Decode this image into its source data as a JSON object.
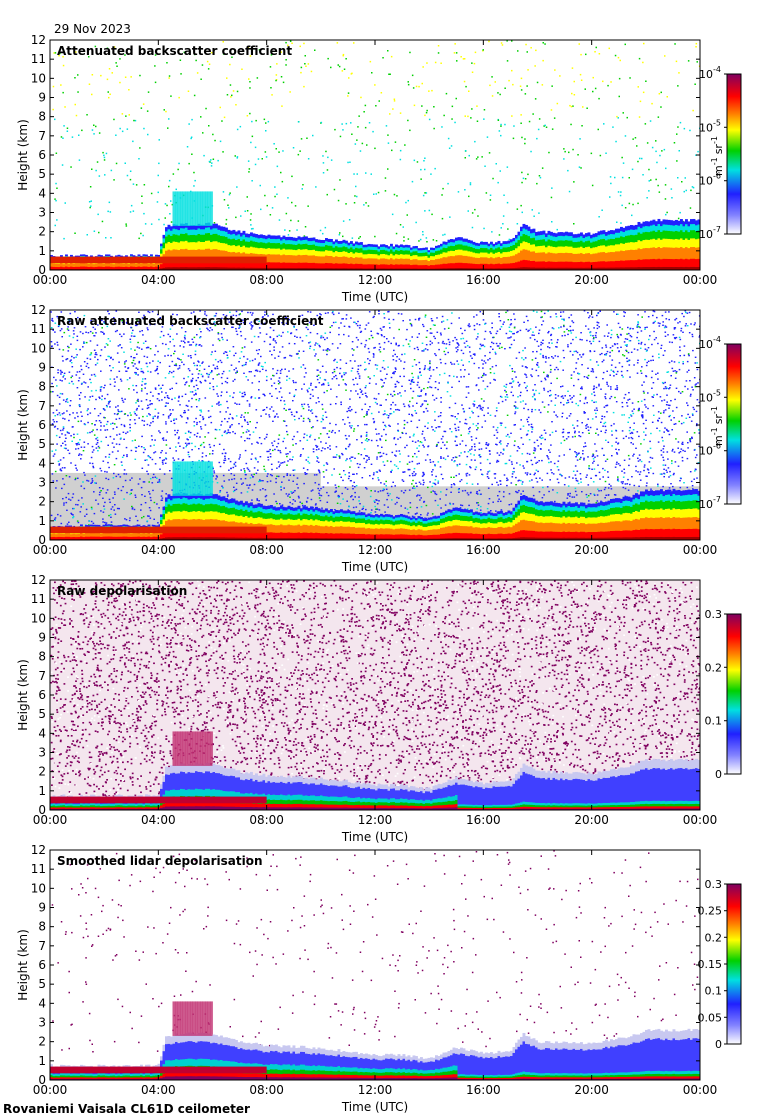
{
  "date": "29 Nov 2023",
  "footer": "Rovaniemi Vaisala CL61D ceilometer",
  "colors": {
    "scale": [
      "#e0e0f0",
      "#2020ff",
      "#00e0e0",
      "#00d000",
      "#ffff00",
      "#ff8000",
      "#ff0000",
      "#800060"
    ],
    "noise_gray": "#d0d0d0",
    "depol_noise": "#800060"
  },
  "chart_data": [
    {
      "type": "heatmap",
      "title": "Attenuated backscatter coefficient",
      "xlabel": "Time (UTC)",
      "ylabel": "Height (km)",
      "xlim": [
        "00:00",
        "00:00"
      ],
      "ylim": [
        0,
        12
      ],
      "xticks": [
        "00:00",
        "04:00",
        "08:00",
        "12:00",
        "16:00",
        "20:00",
        "00:00"
      ],
      "yticks": [
        "0",
        "1",
        "2",
        "3",
        "4",
        "5",
        "6",
        "7",
        "8",
        "9",
        "10",
        "11",
        "12"
      ],
      "colorbar": {
        "scale": "log",
        "range": [
          1e-07,
          0.0001
        ],
        "ticks": [
          {
            "base": "10",
            "exp": "-4",
            "pos": 1.0
          },
          {
            "base": "10",
            "exp": "-5",
            "pos": 0.667
          },
          {
            "base": "10",
            "exp": "-6",
            "pos": 0.333
          },
          {
            "base": "10",
            "exp": "-7",
            "pos": 0.0
          }
        ],
        "unit": {
          "a": "m",
          "a_exp": "-1",
          "b": "sr",
          "b_exp": "-1"
        }
      },
      "noise": "sparse"
    },
    {
      "type": "heatmap",
      "title": "Raw attenuated backscatter coefficient",
      "xlabel": "Time (UTC)",
      "ylabel": "Height (km)",
      "xlim": [
        "00:00",
        "00:00"
      ],
      "ylim": [
        0,
        12
      ],
      "xticks": [
        "00:00",
        "04:00",
        "08:00",
        "12:00",
        "16:00",
        "20:00",
        "00:00"
      ],
      "yticks": [
        "0",
        "1",
        "2",
        "3",
        "4",
        "5",
        "6",
        "7",
        "8",
        "9",
        "10",
        "11",
        "12"
      ],
      "colorbar": {
        "scale": "log",
        "range": [
          1e-07,
          0.0001
        ],
        "ticks": [
          {
            "base": "10",
            "exp": "-4",
            "pos": 1.0
          },
          {
            "base": "10",
            "exp": "-5",
            "pos": 0.667
          },
          {
            "base": "10",
            "exp": "-6",
            "pos": 0.333
          },
          {
            "base": "10",
            "exp": "-7",
            "pos": 0.0
          }
        ],
        "unit": {
          "a": "m",
          "a_exp": "-1",
          "b": "sr",
          "b_exp": "-1"
        }
      },
      "noise": "dense_blue"
    },
    {
      "type": "heatmap",
      "title": "Raw depolarisation",
      "xlabel": "Time (UTC)",
      "ylabel": "Height (km)",
      "xlim": [
        "00:00",
        "00:00"
      ],
      "ylim": [
        0,
        12
      ],
      "xticks": [
        "00:00",
        "04:00",
        "08:00",
        "12:00",
        "16:00",
        "20:00",
        "00:00"
      ],
      "yticks": [
        "0",
        "1",
        "2",
        "3",
        "4",
        "5",
        "6",
        "7",
        "8",
        "9",
        "10",
        "11",
        "12"
      ],
      "colorbar": {
        "scale": "linear",
        "range": [
          0,
          0.3
        ],
        "ticks": [
          {
            "label": "0.3",
            "pos": 1.0
          },
          {
            "label": "0.2",
            "pos": 0.667
          },
          {
            "label": "0.1",
            "pos": 0.333
          },
          {
            "label": "0",
            "pos": 0.0
          }
        ]
      },
      "noise": "dense_purple"
    },
    {
      "type": "heatmap",
      "title": "Smoothed lidar depolarisation",
      "xlabel": "Time (UTC)",
      "ylabel": "Height (km)",
      "xlim": [
        "00:00",
        "00:00"
      ],
      "ylim": [
        0,
        12
      ],
      "xticks": [
        "00:00",
        "04:00",
        "08:00",
        "12:00",
        "16:00",
        "20:00",
        "00:00"
      ],
      "yticks": [
        "0",
        "1",
        "2",
        "3",
        "4",
        "5",
        "6",
        "7",
        "8",
        "9",
        "10",
        "11",
        "12"
      ],
      "colorbar": {
        "scale": "linear",
        "range": [
          0,
          0.3
        ],
        "ticks": [
          {
            "label": "0.3",
            "pos": 1.0
          },
          {
            "label": "0.25",
            "pos": 0.833
          },
          {
            "label": "0.2",
            "pos": 0.667
          },
          {
            "label": "0.15",
            "pos": 0.5
          },
          {
            "label": "0.1",
            "pos": 0.333
          },
          {
            "label": "0.05",
            "pos": 0.167
          },
          {
            "label": "0",
            "pos": 0.0
          }
        ]
      },
      "noise": "sparse_purple"
    }
  ],
  "cloud": {
    "boundary_layer_top_km": [
      {
        "t": 0,
        "h": 0.75
      },
      {
        "t": 4.0,
        "h": 0.75
      },
      {
        "t": 4.3,
        "h": 2.3
      },
      {
        "t": 5.0,
        "h": 2.4
      },
      {
        "t": 6.0,
        "h": 2.4
      },
      {
        "t": 7.0,
        "h": 2.0
      },
      {
        "t": 8.0,
        "h": 1.8
      },
      {
        "t": 9.5,
        "h": 1.7
      },
      {
        "t": 11.0,
        "h": 1.5
      },
      {
        "t": 12.0,
        "h": 1.3
      },
      {
        "t": 13.0,
        "h": 1.3
      },
      {
        "t": 14.0,
        "h": 1.1
      },
      {
        "t": 15.0,
        "h": 1.7
      },
      {
        "t": 16.0,
        "h": 1.4
      },
      {
        "t": 17.0,
        "h": 1.5
      },
      {
        "t": 17.5,
        "h": 2.4
      },
      {
        "t": 18.0,
        "h": 2.0
      },
      {
        "t": 20.0,
        "h": 1.9
      },
      {
        "t": 21.5,
        "h": 2.3
      },
      {
        "t": 22.0,
        "h": 2.6
      },
      {
        "t": 24.0,
        "h": 2.6
      }
    ]
  }
}
